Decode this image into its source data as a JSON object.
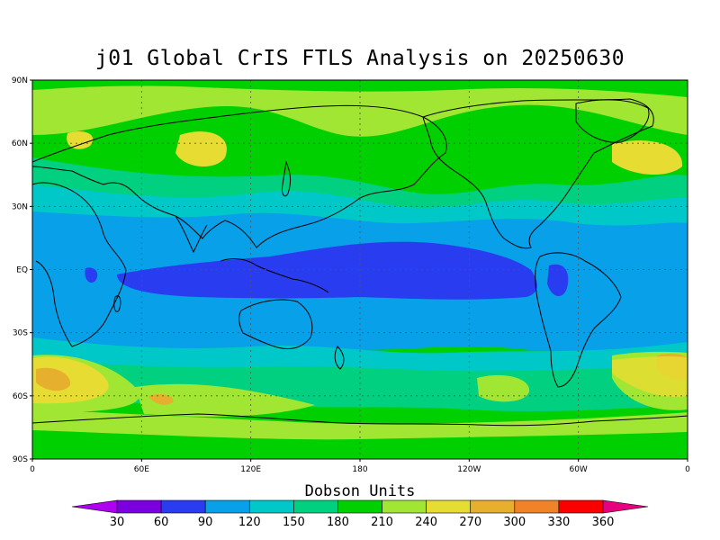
{
  "title": "j01 Global CrIS FTLS Analysis on 20250630",
  "map": {
    "lat_labels": [
      "90N",
      "60N",
      "30N",
      "EQ",
      "30S",
      "60S",
      "90S"
    ],
    "lon_labels": [
      "0",
      "60E",
      "120E",
      "180",
      "120W",
      "60W",
      "0"
    ],
    "grid": "dotted"
  },
  "colorbar": {
    "title": "Dobson Units",
    "levels": [
      "30",
      "60",
      "90",
      "120",
      "150",
      "180",
      "210",
      "240",
      "270",
      "300",
      "330",
      "360"
    ],
    "colors": [
      "#b000f0",
      "#7a00e0",
      "#2a3cf0",
      "#08a0e8",
      "#00c8c8",
      "#00d080",
      "#00d000",
      "#a0e632",
      "#e6dc32",
      "#e6af2d",
      "#f08228",
      "#fa0000",
      "#e60080"
    ]
  },
  "colors": {
    "band_low": "#2a3cf0",
    "band_tropics": "#08a0e8",
    "band_mid": "#00c8c8",
    "band_green": "#00d080",
    "band_lime": "#00d000",
    "band_yellowgreen": "#a0e632",
    "band_yellow": "#e6dc32",
    "band_orange": "#e6af2d"
  }
}
